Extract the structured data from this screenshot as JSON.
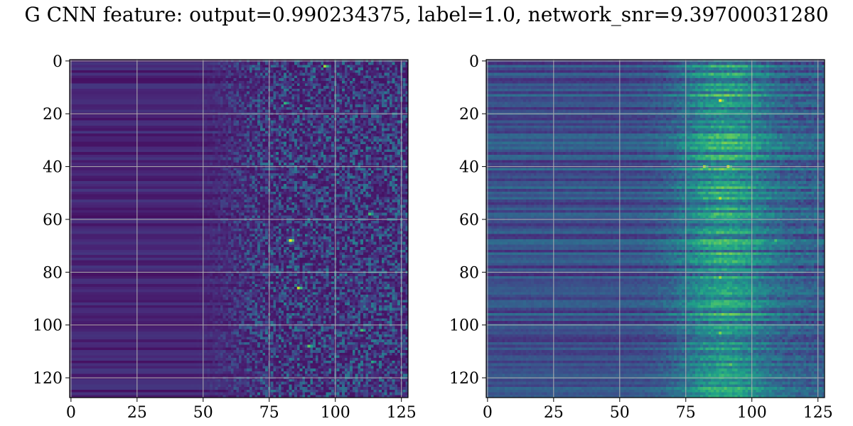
{
  "title": "G CNN feature: output=0.990234375, label=1.0, network_snr=9.39700031280",
  "chart_data": [
    {
      "type": "heatmap",
      "title": "",
      "xlabel": "",
      "ylabel": "",
      "rows": 128,
      "cols": 128,
      "xlim": [
        0,
        127
      ],
      "ylim": [
        127,
        0
      ],
      "x_ticks": [
        0,
        25,
        50,
        75,
        100,
        125
      ],
      "y_ticks": [
        0,
        20,
        40,
        60,
        80,
        100,
        120
      ],
      "grid": true,
      "colormap": "viridis",
      "description_of_values": "Columns 0-50 uniformly low with horizontal banding; values rise from column ~50 onward; columns 75-127 noisy with scattered high values (peak near column 83, row 68)",
      "hotspots": [
        {
          "x": 83,
          "y": 68,
          "value": 1.0
        },
        {
          "x": 96,
          "y": 2,
          "value": 0.85
        },
        {
          "x": 86,
          "y": 86,
          "value": 0.9
        },
        {
          "x": 90,
          "y": 108,
          "value": 0.75
        },
        {
          "x": 113,
          "y": 58,
          "value": 0.7
        },
        {
          "x": 110,
          "y": 102,
          "value": 0.7
        },
        {
          "x": 81,
          "y": 16,
          "value": 0.65
        },
        {
          "x": 114,
          "y": 114,
          "value": 0.6
        }
      ]
    },
    {
      "type": "heatmap",
      "title": "",
      "xlabel": "",
      "ylabel": "",
      "rows": 128,
      "cols": 128,
      "xlim": [
        0,
        127
      ],
      "ylim": [
        127,
        0
      ],
      "x_ticks": [
        0,
        25,
        50,
        75,
        100,
        125
      ],
      "y_ticks": [
        0,
        20,
        40,
        60,
        80,
        100,
        120
      ],
      "grid": true,
      "colormap": "viridis",
      "description_of_values": "Moderate values with strong horizontal banding across all columns; brighter region concentrated between columns 75 and 100 (peaks near column 88, rows 15, 40, 52, 82, 103, 115)",
      "hotspots": [
        {
          "x": 88,
          "y": 15,
          "value": 1.0
        },
        {
          "x": 82,
          "y": 40,
          "value": 0.9
        },
        {
          "x": 91,
          "y": 40,
          "value": 0.95
        },
        {
          "x": 88,
          "y": 52,
          "value": 0.9
        },
        {
          "x": 88,
          "y": 82,
          "value": 0.85
        },
        {
          "x": 88,
          "y": 103,
          "value": 0.8
        },
        {
          "x": 92,
          "y": 115,
          "value": 0.75
        },
        {
          "x": 109,
          "y": 68,
          "value": 0.7
        }
      ]
    }
  ]
}
